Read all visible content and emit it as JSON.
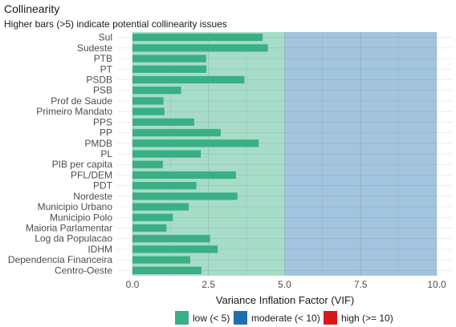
{
  "chart_data": {
    "type": "bar",
    "orientation": "horizontal",
    "title": "Collinearity",
    "subtitle": "Higher bars (>5) indicate potential collinearity issues",
    "xlabel": "Variance Inflation Factor (VIF)",
    "ylabel": "",
    "xlim": [
      -0.5,
      10.5
    ],
    "xticks": [
      0,
      2.5,
      5,
      7.5,
      10
    ],
    "xtick_labels": [
      "0.0",
      "2.5",
      "5.0",
      "7.5",
      "10.0"
    ],
    "grid": true,
    "legend_position": "bottom",
    "zones": [
      {
        "from": 0,
        "to": 5,
        "color": "#a7dcc9"
      },
      {
        "from": 5,
        "to": 10,
        "color": "#a2c4de"
      }
    ],
    "bar_color": "#3aaf85",
    "categories": [
      "Sul",
      "Sudeste",
      "PTB",
      "PT",
      "PSDB",
      "PSB",
      "Prof de Saude",
      "Primeiro Mandato",
      "PPS",
      "PP",
      "PMDB",
      "PL",
      "PIB per capita",
      "PFL/DEM",
      "PDT",
      "Nordeste",
      "Municipio Urbano",
      "Municipio Polo",
      "Maioria Parlamentar",
      "Log da Populacao",
      "IDHM",
      "Dependencia Financeira",
      "Centro-Oeste"
    ],
    "values": [
      4.28,
      4.45,
      2.42,
      2.43,
      3.68,
      1.6,
      1.02,
      1.05,
      2.03,
      2.9,
      4.15,
      2.25,
      1.0,
      3.4,
      2.1,
      3.45,
      1.85,
      1.33,
      1.12,
      2.55,
      2.8,
      1.9,
      2.27
    ],
    "legend": [
      {
        "label": "low (< 5)",
        "color": "#3aaf85"
      },
      {
        "label": "moderate (< 10)",
        "color": "#1f6fae"
      },
      {
        "label": "high (>= 10)",
        "color": "#d7191c"
      }
    ]
  }
}
